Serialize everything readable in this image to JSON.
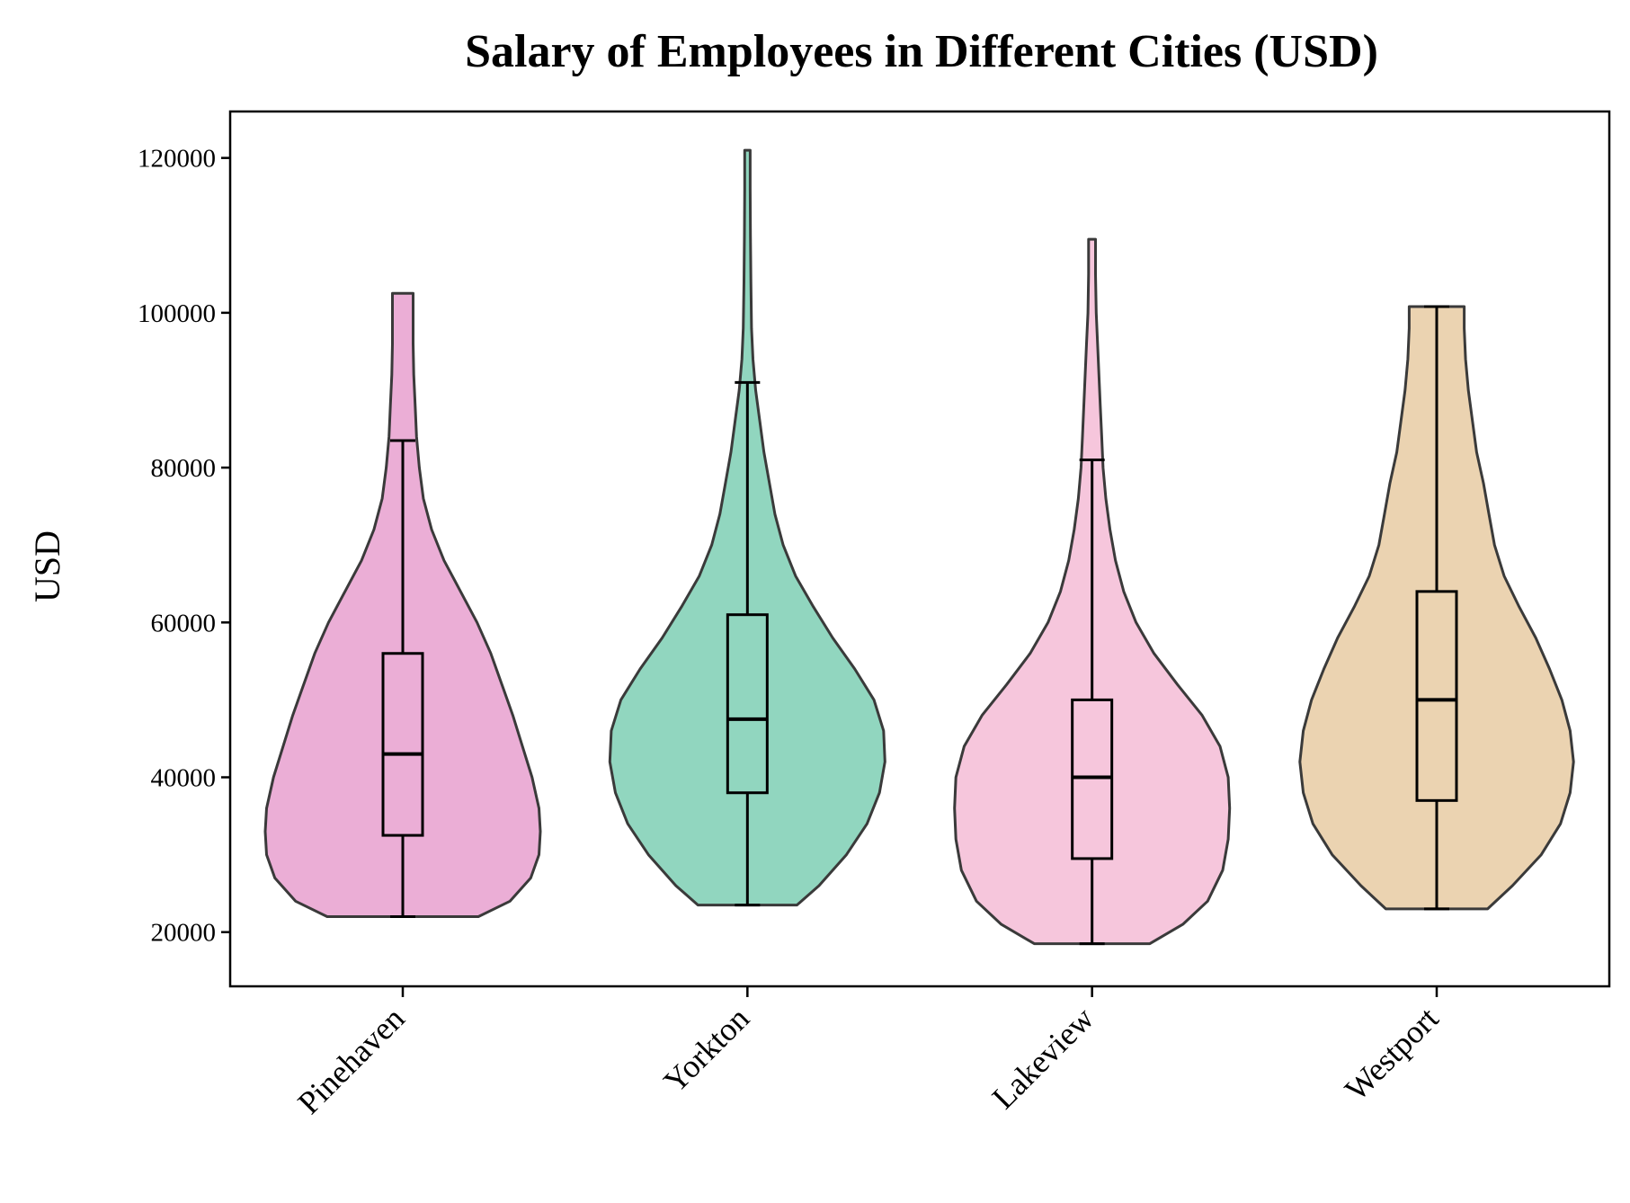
{
  "chart_data": {
    "type": "violin",
    "title": "Salary of Employees in Different Cities (USD)",
    "xlabel": "",
    "ylabel": "USD",
    "ylim": [
      13000,
      126000
    ],
    "yticks": [
      20000,
      40000,
      60000,
      80000,
      100000,
      120000
    ],
    "ytick_labels": [
      "20000",
      "40000",
      "60000",
      "80000",
      "100000",
      "120000"
    ],
    "grid": false,
    "categories": [
      "Pinehaven",
      "Yorkton",
      "Lakeview",
      "Westport"
    ],
    "series": [
      {
        "category": "Pinehaven",
        "color": "#e7a0cf",
        "min": 22000,
        "q1": 32500,
        "median": 43000,
        "q3": 56000,
        "max": 102500,
        "whisker_low": 22000,
        "whisker_high": 83500,
        "density": [
          [
            22000,
            0.55
          ],
          [
            24000,
            0.78
          ],
          [
            27000,
            0.93
          ],
          [
            30000,
            0.99
          ],
          [
            33000,
            1.0
          ],
          [
            36000,
            0.99
          ],
          [
            40000,
            0.94
          ],
          [
            44000,
            0.87
          ],
          [
            48000,
            0.8
          ],
          [
            52000,
            0.72
          ],
          [
            56000,
            0.64
          ],
          [
            60000,
            0.54
          ],
          [
            64000,
            0.42
          ],
          [
            68000,
            0.3
          ],
          [
            72000,
            0.21
          ],
          [
            76000,
            0.15
          ],
          [
            80000,
            0.12
          ],
          [
            84000,
            0.1
          ],
          [
            88000,
            0.09
          ],
          [
            92000,
            0.08
          ],
          [
            96000,
            0.075
          ],
          [
            100000,
            0.075
          ],
          [
            102500,
            0.075
          ]
        ]
      },
      {
        "category": "Yorkton",
        "color": "#7ecfb4",
        "min": 23500,
        "q1": 38000,
        "median": 47500,
        "q3": 61000,
        "max": 121000,
        "whisker_low": 23500,
        "whisker_high": 91000,
        "density": [
          [
            23500,
            0.36
          ],
          [
            26000,
            0.52
          ],
          [
            30000,
            0.72
          ],
          [
            34000,
            0.87
          ],
          [
            38000,
            0.96
          ],
          [
            42000,
            1.0
          ],
          [
            46000,
            0.99
          ],
          [
            50000,
            0.92
          ],
          [
            54000,
            0.78
          ],
          [
            58000,
            0.62
          ],
          [
            62000,
            0.48
          ],
          [
            66000,
            0.35
          ],
          [
            70000,
            0.26
          ],
          [
            74000,
            0.2
          ],
          [
            78000,
            0.16
          ],
          [
            82000,
            0.12
          ],
          [
            86000,
            0.09
          ],
          [
            90000,
            0.06
          ],
          [
            94000,
            0.04
          ],
          [
            98000,
            0.03
          ],
          [
            104000,
            0.025
          ],
          [
            110000,
            0.022
          ],
          [
            116000,
            0.02
          ],
          [
            121000,
            0.02
          ]
        ]
      },
      {
        "category": "Lakeview",
        "color": "#f5bcd6",
        "min": 18500,
        "q1": 29500,
        "median": 40000,
        "q3": 50000,
        "max": 109500,
        "whisker_low": 18500,
        "whisker_high": 81000,
        "density": [
          [
            18500,
            0.42
          ],
          [
            21000,
            0.66
          ],
          [
            24000,
            0.84
          ],
          [
            28000,
            0.95
          ],
          [
            32000,
            0.99
          ],
          [
            36000,
            1.0
          ],
          [
            40000,
            0.99
          ],
          [
            44000,
            0.93
          ],
          [
            48000,
            0.8
          ],
          [
            52000,
            0.62
          ],
          [
            56000,
            0.45
          ],
          [
            60000,
            0.32
          ],
          [
            64000,
            0.23
          ],
          [
            68000,
            0.17
          ],
          [
            72000,
            0.13
          ],
          [
            76000,
            0.1
          ],
          [
            80000,
            0.08
          ],
          [
            84000,
            0.07
          ],
          [
            88000,
            0.06
          ],
          [
            92000,
            0.05
          ],
          [
            96000,
            0.04
          ],
          [
            100000,
            0.03
          ],
          [
            105000,
            0.025
          ],
          [
            109500,
            0.025
          ]
        ]
      },
      {
        "category": "Westport",
        "color": "#e8cba3",
        "min": 23000,
        "q1": 37000,
        "median": 50000,
        "q3": 64000,
        "max": 100800,
        "whisker_low": 23000,
        "whisker_high": 100800,
        "density": [
          [
            23000,
            0.37
          ],
          [
            26000,
            0.55
          ],
          [
            30000,
            0.76
          ],
          [
            34000,
            0.9
          ],
          [
            38000,
            0.97
          ],
          [
            42000,
            0.995
          ],
          [
            46000,
            0.97
          ],
          [
            50000,
            0.91
          ],
          [
            54000,
            0.82
          ],
          [
            58000,
            0.72
          ],
          [
            62000,
            0.6
          ],
          [
            66000,
            0.49
          ],
          [
            70000,
            0.42
          ],
          [
            74000,
            0.38
          ],
          [
            78000,
            0.34
          ],
          [
            82000,
            0.29
          ],
          [
            86000,
            0.26
          ],
          [
            90000,
            0.23
          ],
          [
            94000,
            0.21
          ],
          [
            98000,
            0.2
          ],
          [
            100800,
            0.2
          ]
        ]
      }
    ]
  }
}
